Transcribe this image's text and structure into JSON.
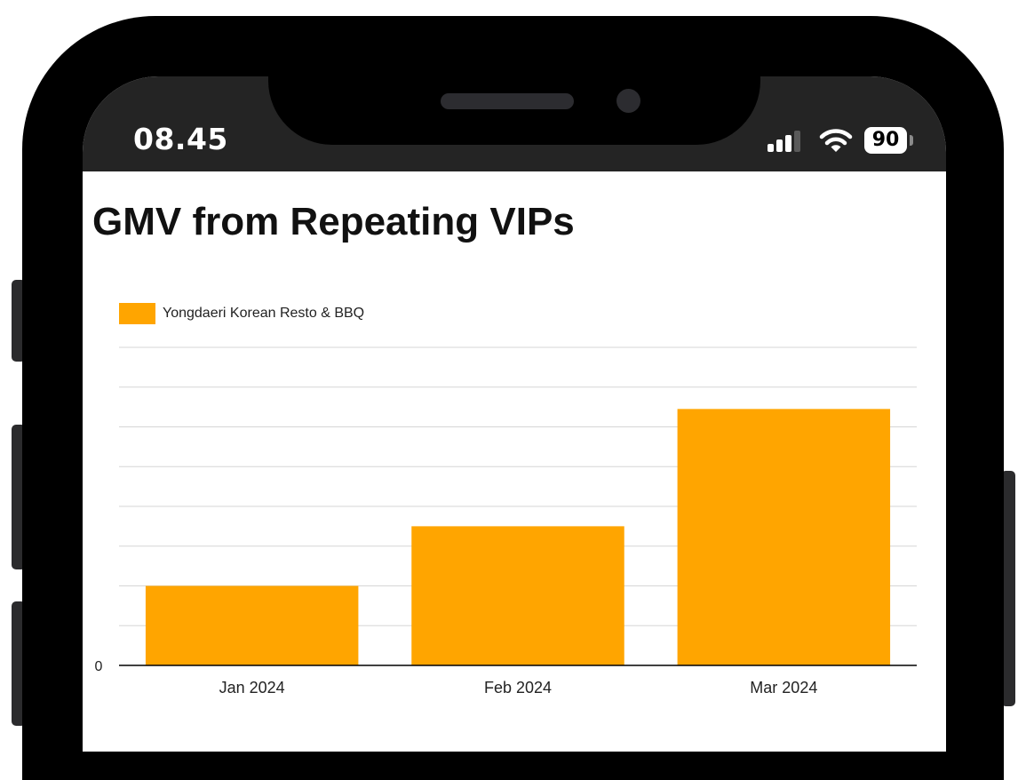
{
  "status_bar": {
    "time": "08.45",
    "battery_level": "90",
    "icons": [
      "cellular-signal-icon",
      "wifi-icon",
      "battery-icon"
    ]
  },
  "title": "GMV from Repeating VIPs",
  "chart_data": {
    "type": "bar",
    "title": "GMV from Repeating VIPs",
    "categories": [
      "Jan 2024",
      "Feb 2024",
      "Mar 2024"
    ],
    "series": [
      {
        "name": "Yongdaeri Korean Resto & BBQ",
        "values": [
          2,
          3.5,
          6.45
        ],
        "color": "#ffa500"
      }
    ],
    "ytick_labels": [
      "0"
    ],
    "ylim": [
      0,
      8
    ],
    "grid": true,
    "legend": "top-left"
  }
}
